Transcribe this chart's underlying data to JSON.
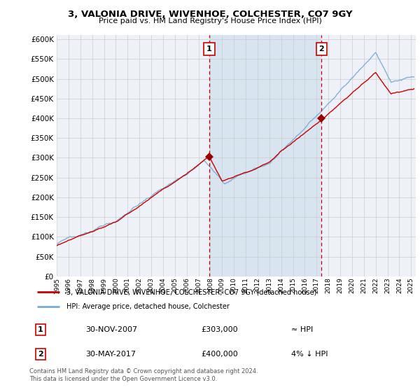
{
  "title": "3, VALONIA DRIVE, WIVENHOE, COLCHESTER, CO7 9GY",
  "subtitle": "Price paid vs. HM Land Registry's House Price Index (HPI)",
  "ylim": [
    0,
    610000
  ],
  "yticks": [
    0,
    50000,
    100000,
    150000,
    200000,
    250000,
    300000,
    350000,
    400000,
    450000,
    500000,
    550000,
    600000
  ],
  "xlim_start": 1995.0,
  "xlim_end": 2025.4,
  "background_color": "#ffffff",
  "plot_bg_color": "#eef2f8",
  "shade_color": "#d8e4f0",
  "grid_color": "#cccccc",
  "sale1_date": 2007.917,
  "sale1_price": 303000,
  "sale1_label": "1",
  "sale2_date": 2017.417,
  "sale2_price": 400000,
  "sale2_label": "2",
  "hpi_color": "#7aaad0",
  "sale_line_color": "#cc0000",
  "sale_dot_color": "#990000",
  "dashed_line_color": "#cc0000",
  "legend1_label": "3, VALONIA DRIVE, WIVENHOE, COLCHESTER, CO7 9GY (detached house)",
  "legend2_label": "HPI: Average price, detached house, Colchester",
  "footnote": "Contains HM Land Registry data © Crown copyright and database right 2024.\nThis data is licensed under the Open Government Licence v3.0.",
  "table_row1": [
    "1",
    "30-NOV-2007",
    "£303,000",
    "≈ HPI"
  ],
  "table_row2": [
    "2",
    "30-MAY-2017",
    "£400,000",
    "4% ↓ HPI"
  ]
}
